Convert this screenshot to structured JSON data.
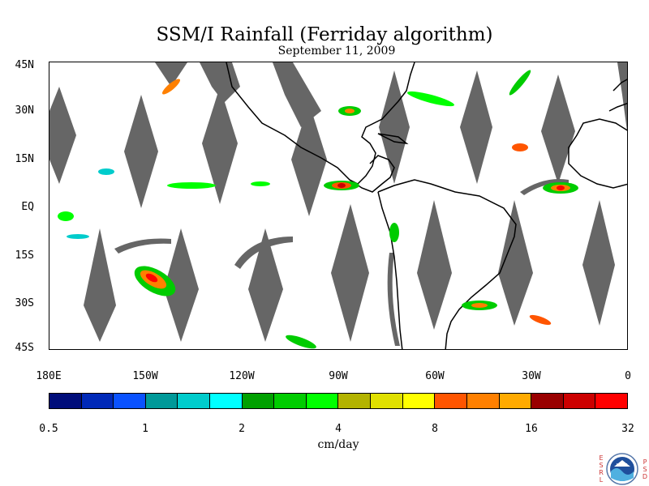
{
  "title": "SSM/I Rainfall (Ferriday algorithm)",
  "date": "September 11, 2009",
  "map": {
    "lat_labels": [
      "45N",
      "30N",
      "15N",
      "EQ",
      "15S",
      "30S",
      "45S"
    ],
    "lon_labels": [
      "180E",
      "150W",
      "120W",
      "90W",
      "60W",
      "30W",
      "0"
    ],
    "no_data_color": "#666666",
    "coastline_color": "#000000"
  },
  "colorbar": {
    "colors": [
      "#000d7a",
      "#0029b8",
      "#0a52ff",
      "#009999",
      "#00cccc",
      "#00ffff",
      "#00a000",
      "#00cc00",
      "#00ff00",
      "#b3b300",
      "#e0e000",
      "#ffff00",
      "#ff5500",
      "#ff8000",
      "#ffaa00",
      "#990000",
      "#cc0000",
      "#ff0000"
    ],
    "tick_labels": [
      "0.5",
      "1",
      "2",
      "4",
      "8",
      "16",
      "32"
    ],
    "units": "cm/day"
  },
  "logo": {
    "text": "NOAA",
    "left_letters": [
      "E",
      "S",
      "R",
      "L"
    ],
    "right_letters": [
      "P",
      "S",
      "D"
    ]
  }
}
